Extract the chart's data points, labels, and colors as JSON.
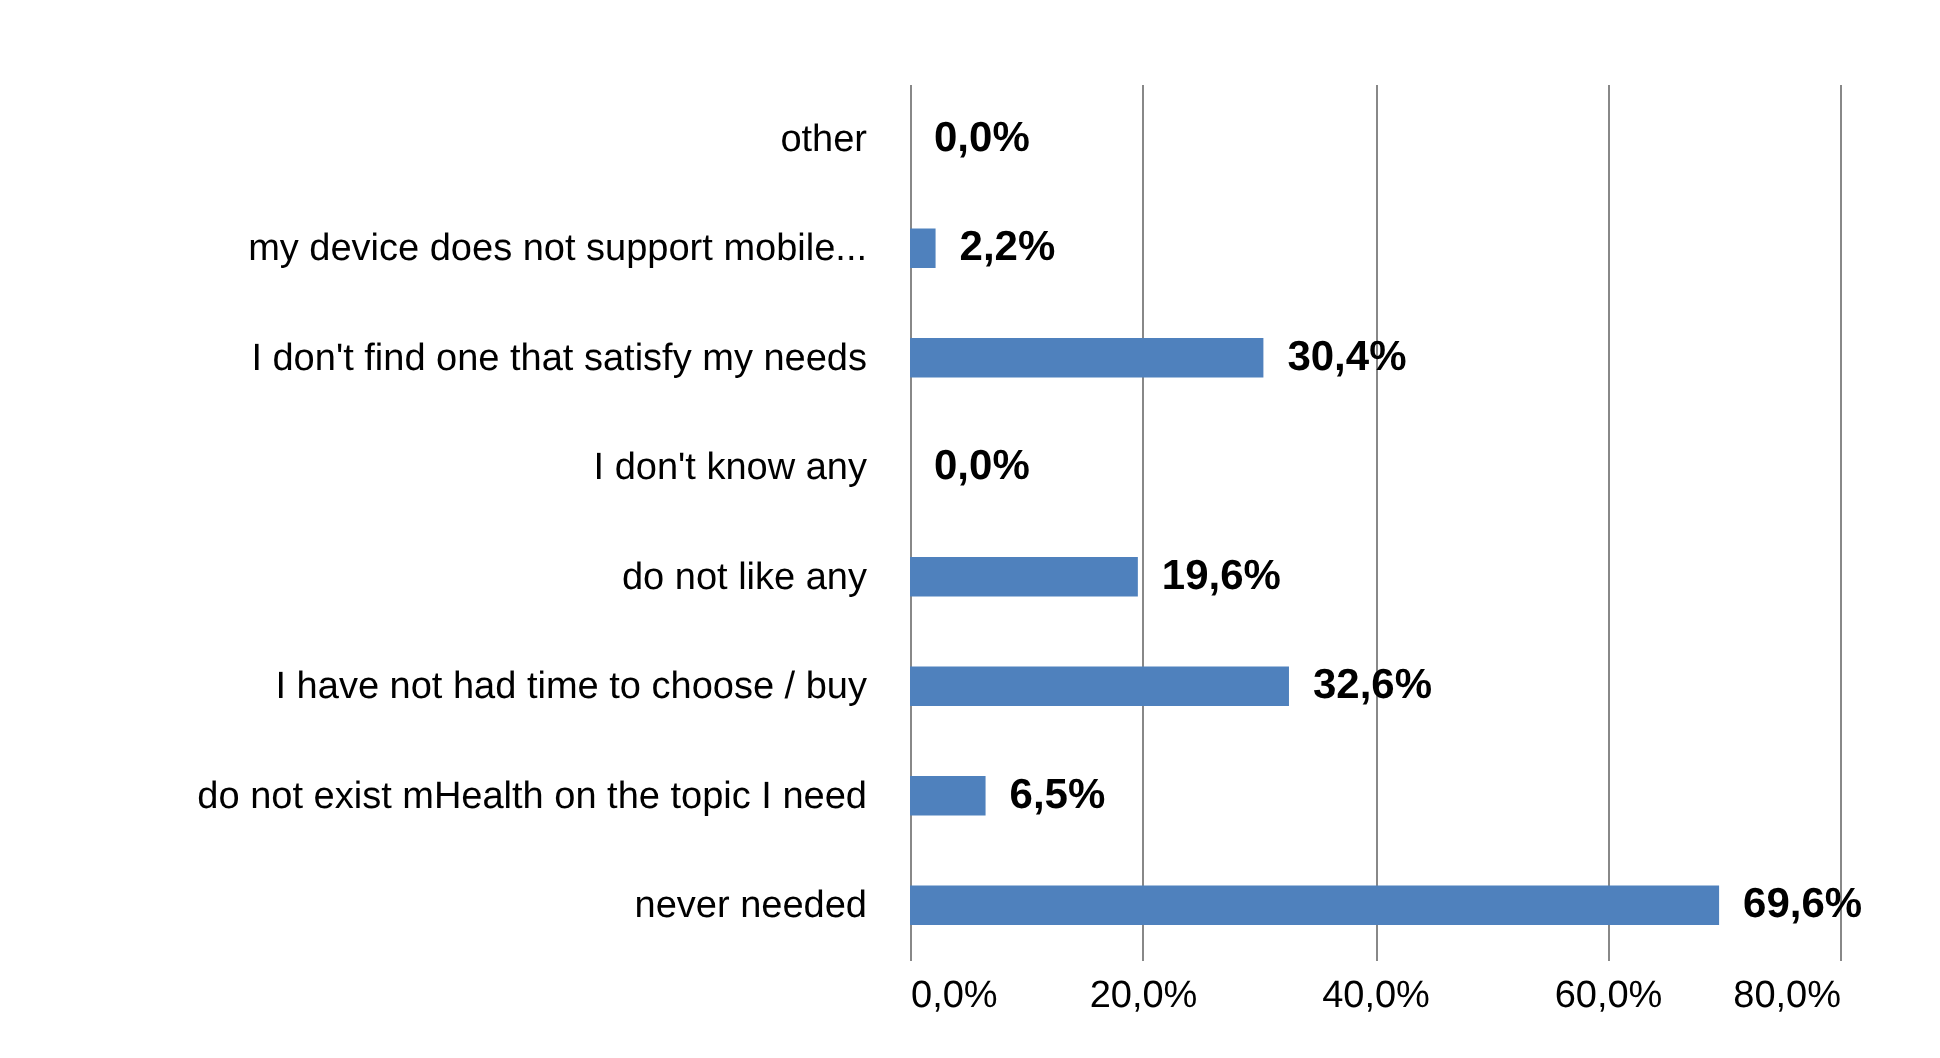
{
  "chart_data": {
    "type": "bar",
    "orientation": "horizontal",
    "categories": [
      "other",
      "my device does not support mobile...",
      "I don't find one that satisfy my needs",
      "I don't know any",
      "do not like any",
      "I have not had time to choose / buy",
      "do not exist mHealth on the topic I need",
      "never needed"
    ],
    "values": [
      0.0,
      2.2,
      30.4,
      0.0,
      19.6,
      32.6,
      6.5,
      69.6
    ],
    "value_labels": [
      "0,0%",
      "2,2%",
      "30,4%",
      "0,0%",
      "19,6%",
      "32,6%",
      "6,5%",
      "69,6%"
    ],
    "color": "#4f81bd",
    "xlim": [
      0,
      80
    ],
    "xticks": [
      {
        "value": 0,
        "label": "0,0%"
      },
      {
        "value": 20,
        "label": "20,0%"
      },
      {
        "value": 40,
        "label": "40,0%"
      },
      {
        "value": 60,
        "label": "60,0%"
      },
      {
        "value": 80,
        "label": "80,0%"
      }
    ],
    "grid": "x"
  }
}
